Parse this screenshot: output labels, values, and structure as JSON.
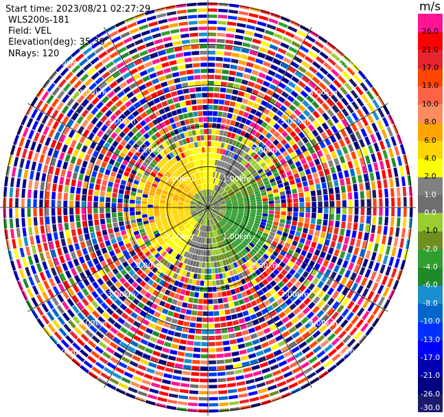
{
  "header": {
    "start_time": "Start time: 2023/08/21 02:27:29",
    "instrument": "WLS200s-181",
    "field": "Field: VEL",
    "elevation": "Elevation(deg): 35.30",
    "nrays": "NRays: 120"
  },
  "chart_data": {
    "type": "heatmap",
    "projection": "polar-ppi",
    "field": "VEL",
    "n_rays": 120,
    "range_rings_km": [
      1.0,
      2.0,
      3.0,
      4.0,
      5.0
    ],
    "ring_labels": [
      "1.00km",
      "2.00km",
      "3.00km",
      "4.00km",
      "5.00km"
    ],
    "max_range_km": 5.1,
    "colorbar": {
      "unit": "m/s",
      "bounds": [
        -30.0,
        -26.0,
        -21.0,
        -17.0,
        -13.0,
        -10.0,
        -8.0,
        -6.0,
        -4.0,
        -2.0,
        -1.0,
        0.0,
        1.0,
        2.0,
        4.0,
        6.0,
        8.0,
        10.0,
        13.0,
        17.0,
        21.0,
        26.0,
        30.0
      ],
      "tick_labels": [
        "-30.0",
        "-26.0",
        "-21.0",
        "-17.0",
        "-13.0",
        "-10.0",
        "-8.0",
        "-6.0",
        "-4.0",
        "-2.0",
        "-1.0",
        "0.0",
        "1.0",
        "2.0",
        "4.0",
        "6.0",
        "8.0",
        "10.0",
        "13.0",
        "17.0",
        "21.0",
        "26.0"
      ],
      "colors": [
        "#1a1a6e",
        "#000080",
        "#0000b0",
        "#0000ff",
        "#0030ff",
        "#0066cc",
        "#1a8fd0",
        "#1f8a2a",
        "#2f9e2f",
        "#6f8f1f",
        "#9acd32",
        "#6e6e6e",
        "#808080",
        "#ffff00",
        "#ffd700",
        "#ffa500",
        "#ff8c60",
        "#ff6347",
        "#ff4500",
        "#e8252c",
        "#ff0000",
        "#ff1493"
      ]
    }
  }
}
